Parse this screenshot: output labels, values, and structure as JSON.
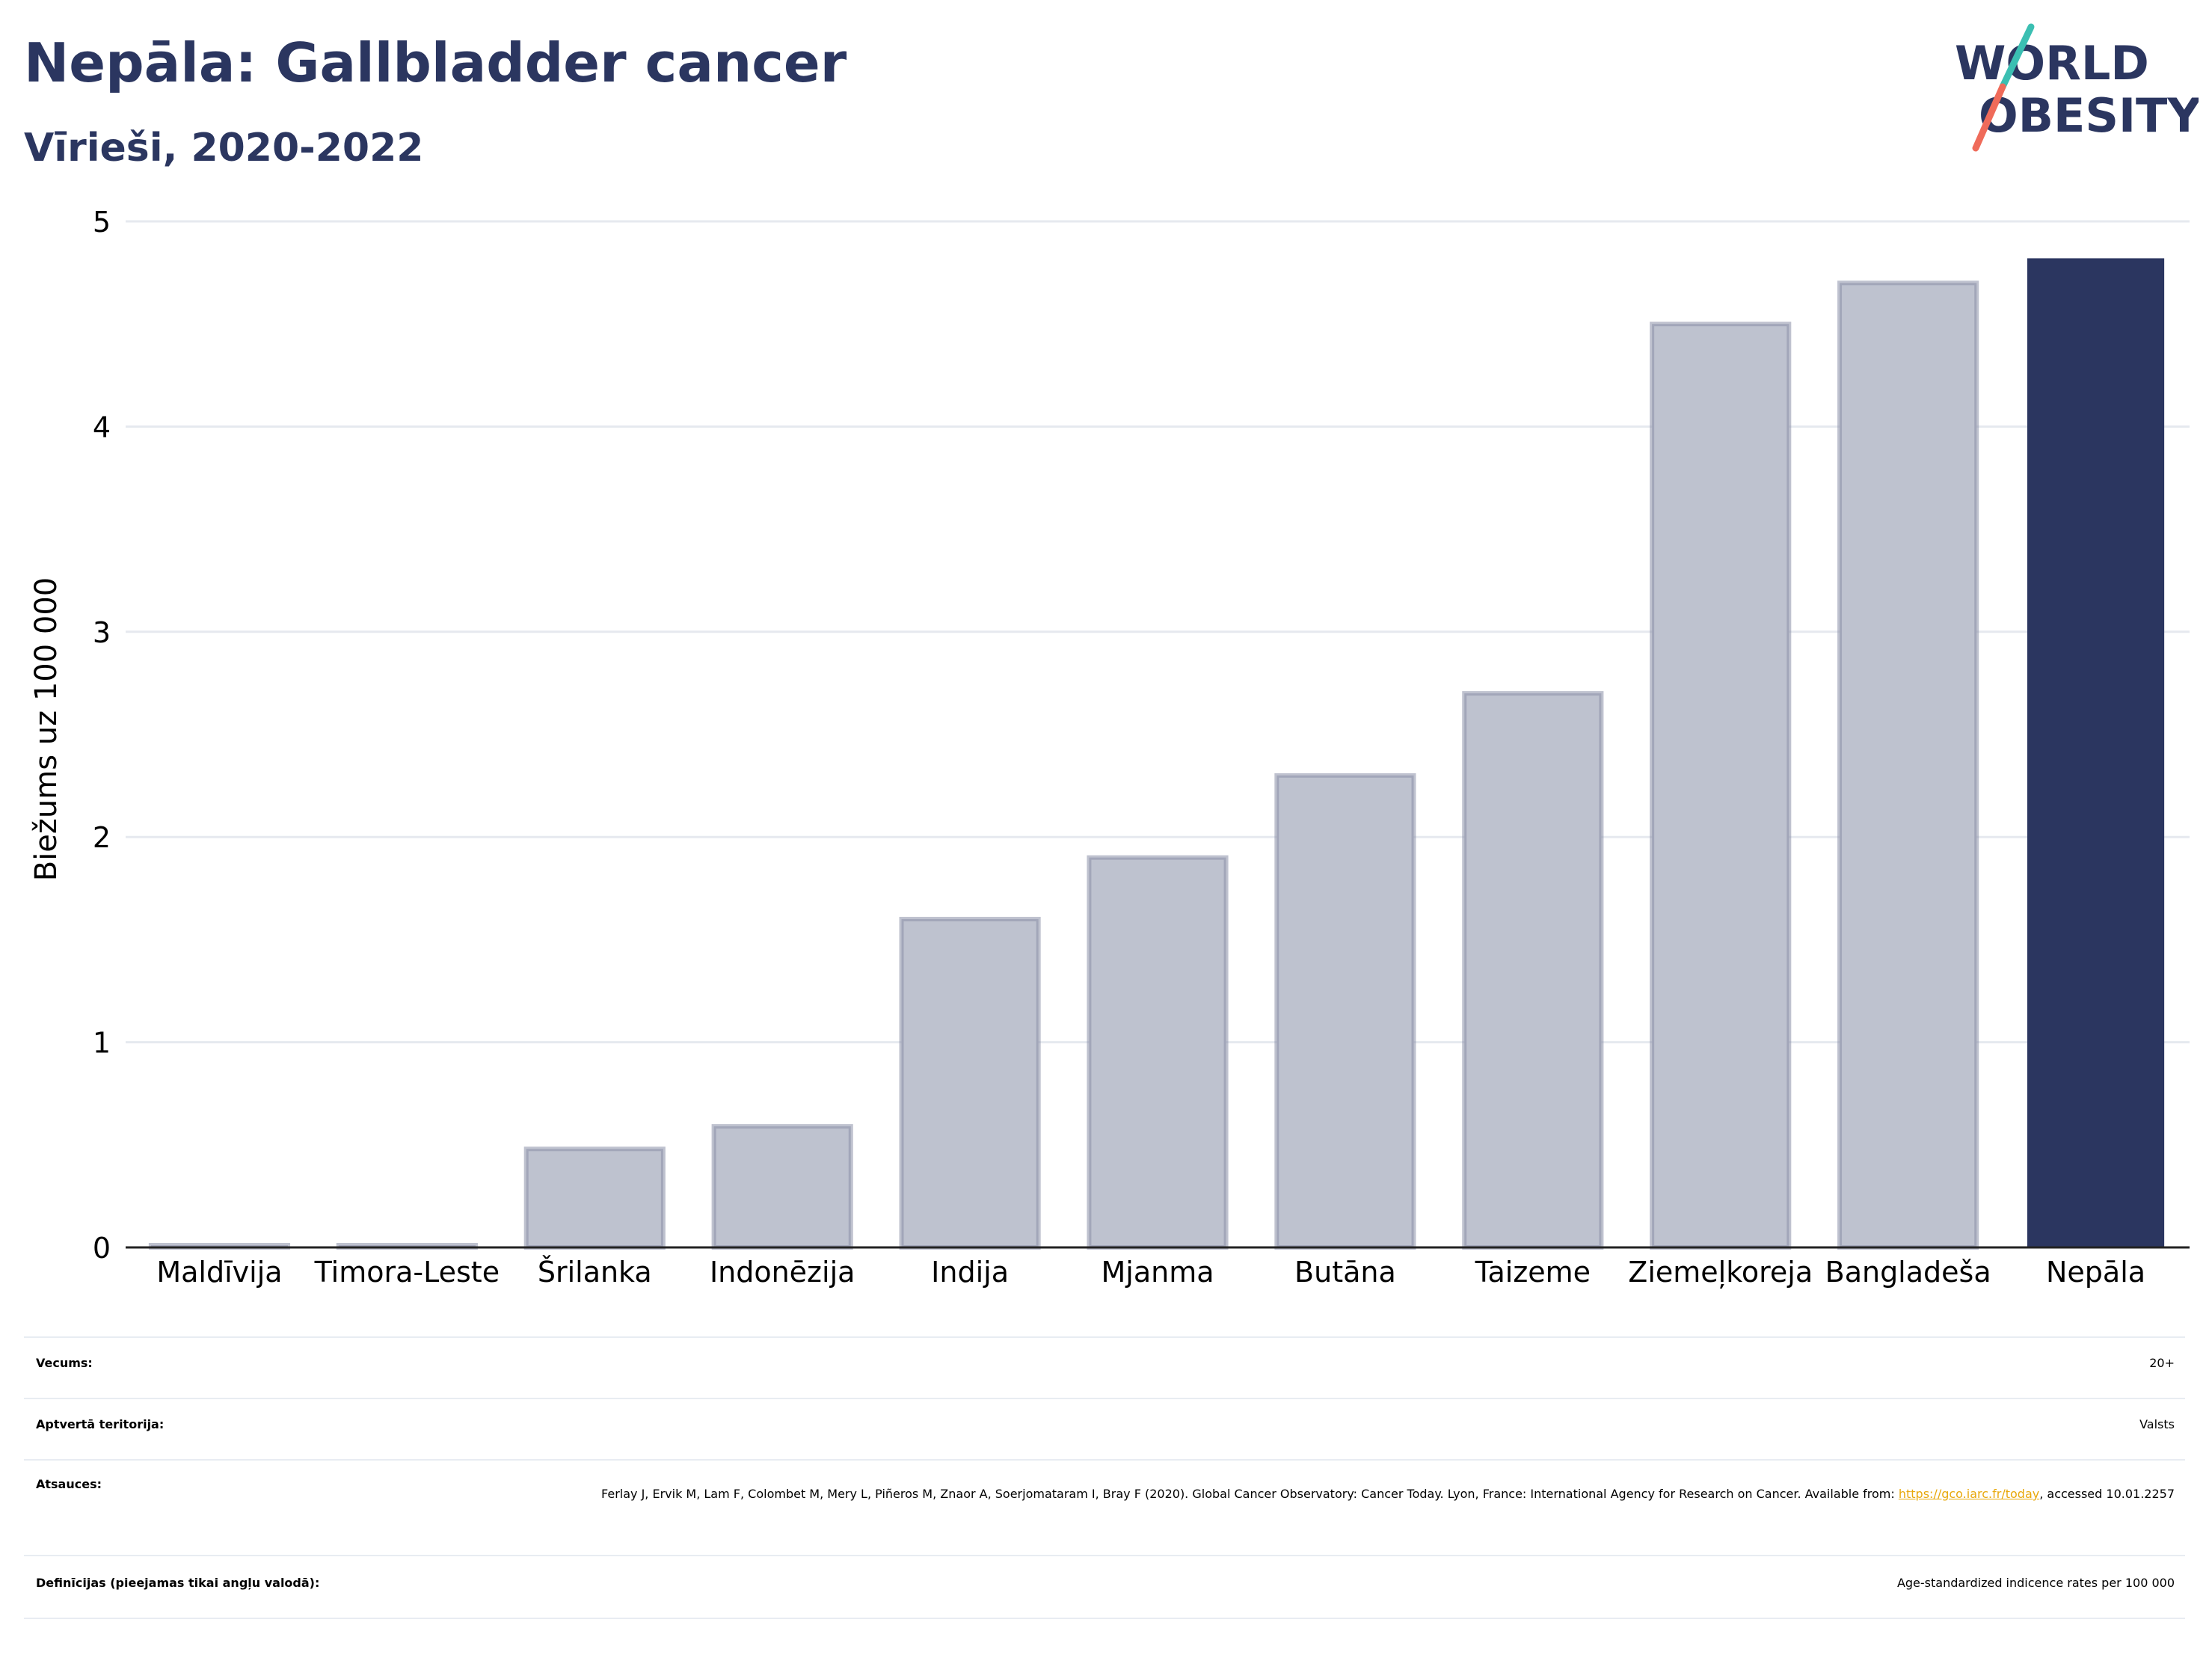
{
  "header": {
    "title": "Nepāla: Gallbladder cancer",
    "subtitle": "Vīrieši, 2020-2022",
    "logo_line1": "WORLD",
    "logo_line2": "OBESITY"
  },
  "colors": {
    "highlight_bar": "#2b3660",
    "other_bar": "#bec2cf",
    "other_bar_border": "#8a90a8",
    "title": "#2b3660",
    "grid": "#e6e9ef",
    "link": "#e8a80c"
  },
  "chart_data": {
    "type": "bar",
    "title": "Nepāla: Gallbladder cancer",
    "subtitle": "Vīrieši, 2020-2022",
    "ylabel": "Biežums uz 100 000",
    "xlabel": "",
    "ylim": [
      0,
      5
    ],
    "yticks": [
      0,
      1,
      2,
      3,
      4,
      5
    ],
    "grid": true,
    "highlight": "Nepāla",
    "categories": [
      "Maldīvija",
      "Timora-Leste",
      "Šrilanka",
      "Indonēzija",
      "Indija",
      "Mjanma",
      "Butāna",
      "Taizeme",
      "Ziemeļkoreja",
      "Bangladeša",
      "Nepāla"
    ],
    "values": [
      0.01,
      0.01,
      0.48,
      0.59,
      1.6,
      1.9,
      2.3,
      2.7,
      4.5,
      4.7,
      4.82
    ]
  },
  "meta": {
    "age_label": "Vecums:",
    "age_value": "20+",
    "territory_label": "Aptvertā teritorija:",
    "territory_value": "Valsts",
    "refs_label": "Atsauces:",
    "refs_text_1": "Ferlay J, Ervik M, Lam F, Colombet M, Mery L, Piñeros M, Znaor A, Soerjomataram I, Bray F (2020). Global Cancer Observatory: Cancer Today. Lyon, France: International Agency for Research on Cancer. Available from: ",
    "refs_link": "https://gco.iarc.fr/today",
    "refs_text_2": ", accessed 10.01.2257",
    "definitions_label": "Definīcijas (pieejamas tikai angļu valodā):",
    "definitions_value": "Age-standardized indicence rates per 100 000"
  }
}
